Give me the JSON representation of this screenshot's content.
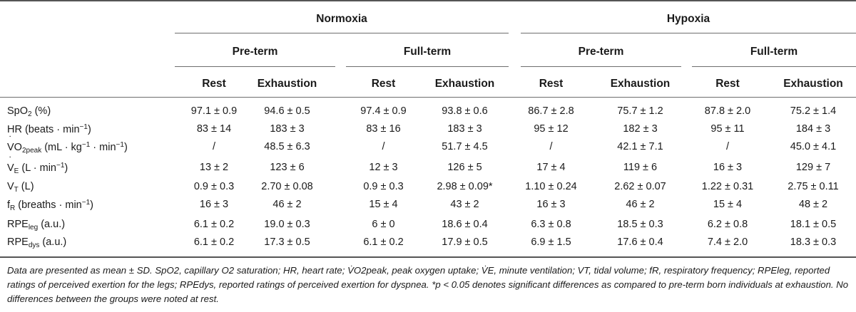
{
  "header": {
    "groups": [
      "Normoxia",
      "Hypoxia"
    ],
    "subgroups": [
      "Pre-term",
      "Full-term",
      "Pre-term",
      "Full-term"
    ],
    "columns": [
      "Rest",
      "Exhaustion",
      "Rest",
      "Exhaustion",
      "Rest",
      "Exhaustion",
      "Rest",
      "Exhaustion"
    ]
  },
  "rows": [
    {
      "cells": [
        "97.1 ± 0.9",
        "94.6 ± 0.5",
        "97.4 ± 0.9",
        "93.8 ± 0.6",
        "86.7 ± 2.8",
        "75.7 ± 1.2",
        "87.8 ± 2.0",
        "75.2 ± 1.4"
      ]
    },
    {
      "cells": [
        "83 ± 14",
        "183 ± 3",
        "83 ± 16",
        "183 ± 3",
        "95 ± 12",
        "182 ± 3",
        "95 ± 11",
        "184 ± 3"
      ]
    },
    {
      "cells": [
        "/",
        "48.5 ± 6.3",
        "/",
        "51.7 ± 4.5",
        "/",
        "42.1 ± 7.1",
        "/",
        "45.0 ± 4.1"
      ]
    },
    {
      "cells": [
        "13 ± 2",
        "123 ± 6",
        "12 ± 3",
        "126 ± 5",
        "17 ± 4",
        "119 ± 6",
        "16 ± 3",
        "129 ± 7"
      ]
    },
    {
      "cells": [
        "0.9 ± 0.3",
        "2.70 ± 0.08",
        "0.9 ± 0.3",
        "2.98 ± 0.09*",
        "1.10 ± 0.24",
        "2.62 ± 0.07",
        "1.22 ± 0.31",
        "2.75 ± 0.11"
      ]
    },
    {
      "cells": [
        "16 ± 3",
        "46 ± 2",
        "15 ± 4",
        "43 ± 2",
        "16 ± 3",
        "46 ± 2",
        "15 ± 4",
        "48 ± 2"
      ]
    },
    {
      "cells": [
        "6.1 ± 0.2",
        "19.0 ± 0.3",
        "6 ± 0",
        "18.6 ± 0.4",
        "6.3 ± 0.8",
        "18.5 ± 0.3",
        "6.2 ± 0.8",
        "18.1 ± 0.5"
      ]
    },
    {
      "cells": [
        "6.1 ± 0.2",
        "17.3 ± 0.5",
        "6.1 ± 0.2",
        "17.9 ± 0.5",
        "6.9 ± 1.5",
        "17.6 ± 0.4",
        "7.4 ± 2.0",
        "18.3 ± 0.3"
      ]
    }
  ],
  "labels": {
    "spo2": {
      "main": "SpO",
      "sub": "2",
      "rest": " (%)"
    },
    "hr": {
      "main": "HR (beats · min",
      "sup": "−1",
      "rest": ")"
    },
    "vo2": {
      "dot": "V",
      "main": "O",
      "sub": "2peak",
      "mid": " (mL · kg",
      "sup1": "−1",
      "mid2": " · min",
      "sup2": "−1",
      "rest": ")"
    },
    "ve": {
      "dot": "V",
      "sub": "E",
      "mid": " (L · min",
      "sup": "−1",
      "rest": ")"
    },
    "vt": {
      "main": "V",
      "sub": "T",
      "rest": " (L)"
    },
    "fr": {
      "main": "f",
      "sub": "R",
      "mid": " (breaths · min",
      "sup": "−1",
      "rest": ")"
    },
    "rpeleg": {
      "main": "RPE",
      "sub": "leg",
      "rest": " (a.u.)"
    },
    "rpedys": {
      "main": "RPE",
      "sub": "dys",
      "rest": " (a.u.)"
    }
  },
  "footnote": "Data are presented as mean ± SD. SpO2, capillary O2 saturation; HR, heart rate; V̇O2peak, peak oxygen uptake; V̇E, minute ventilation; VT, tidal volume; fR, respiratory frequency; RPEleg, reported ratings of perceived exertion for the legs; RPEdys, reported ratings of perceived exertion for dyspnea. *p < 0.05 denotes significant differences as compared to pre-term born individuals at exhaustion. No differences between the groups were noted at rest."
}
